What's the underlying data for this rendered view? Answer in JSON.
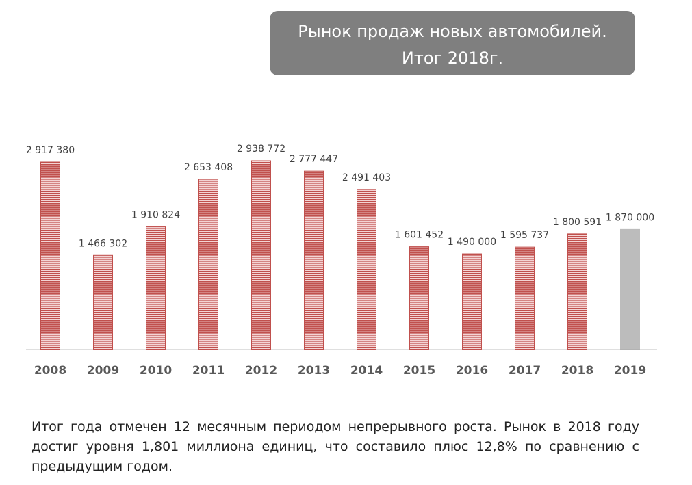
{
  "chart_data": {
    "type": "bar",
    "title": [
      "Рынок продаж новых автомобилей.",
      "Итог 2018г."
    ],
    "categories": [
      "2008",
      "2009",
      "2010",
      "2011",
      "2012",
      "2013",
      "2014",
      "2015",
      "2016",
      "2017",
      "2018",
      "2019"
    ],
    "values": [
      2917380,
      1466302,
      1910824,
      2653408,
      2938772,
      2777447,
      2491403,
      1601452,
      1490000,
      1595737,
      1800591,
      1870000
    ],
    "value_labels": [
      "2 917 380",
      "1 466 302",
      "1 910 824",
      "2 653 408",
      "2 938 772",
      "2 777 447",
      "2 491 403",
      "1 601 452",
      "1 490 000",
      "1 595 737",
      "1 800 591",
      "1 870 000"
    ],
    "colors": [
      "#c0504d",
      "#c0504d",
      "#c0504d",
      "#c0504d",
      "#c0504d",
      "#c0504d",
      "#c0504d",
      "#c0504d",
      "#c0504d",
      "#c0504d",
      "#c0504d",
      "#a0a0a0"
    ]
  },
  "note": "Итог года отмечен 12 месячным периодом непрерывного роста. Рынок в 2018 году достиг уровня 1,801 миллиона единиц, что составило плюс 12,8% по сравнению с предыдущим годом."
}
